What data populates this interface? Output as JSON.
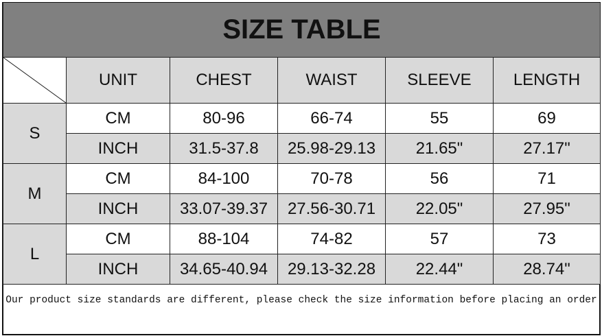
{
  "title": "SIZE TABLE",
  "headers": [
    "UNIT",
    "CHEST",
    "WAIST",
    "SLEEVE",
    "LENGTH"
  ],
  "rows": [
    {
      "size": "S",
      "cm": [
        "CM",
        "80-96",
        "66-74",
        "55",
        "69"
      ],
      "inch": [
        "INCH",
        "31.5-37.8",
        "25.98-29.13",
        "21.65\"",
        "27.17\""
      ]
    },
    {
      "size": "M",
      "cm": [
        "CM",
        "84-100",
        "70-78",
        "56",
        "71"
      ],
      "inch": [
        "INCH",
        "33.07-39.37",
        "27.56-30.71",
        "22.05\"",
        "27.95\""
      ]
    },
    {
      "size": "L",
      "cm": [
        "CM",
        "88-104",
        "74-82",
        "57",
        "73"
      ],
      "inch": [
        "INCH",
        "34.65-40.94",
        "29.13-32.28",
        "22.44\"",
        "28.74\""
      ]
    }
  ],
  "note": "Our product size standards are different, please check the size information before placing an order",
  "colors": {
    "title_bg": "#808080",
    "header_bg": "#d9d9d9"
  }
}
